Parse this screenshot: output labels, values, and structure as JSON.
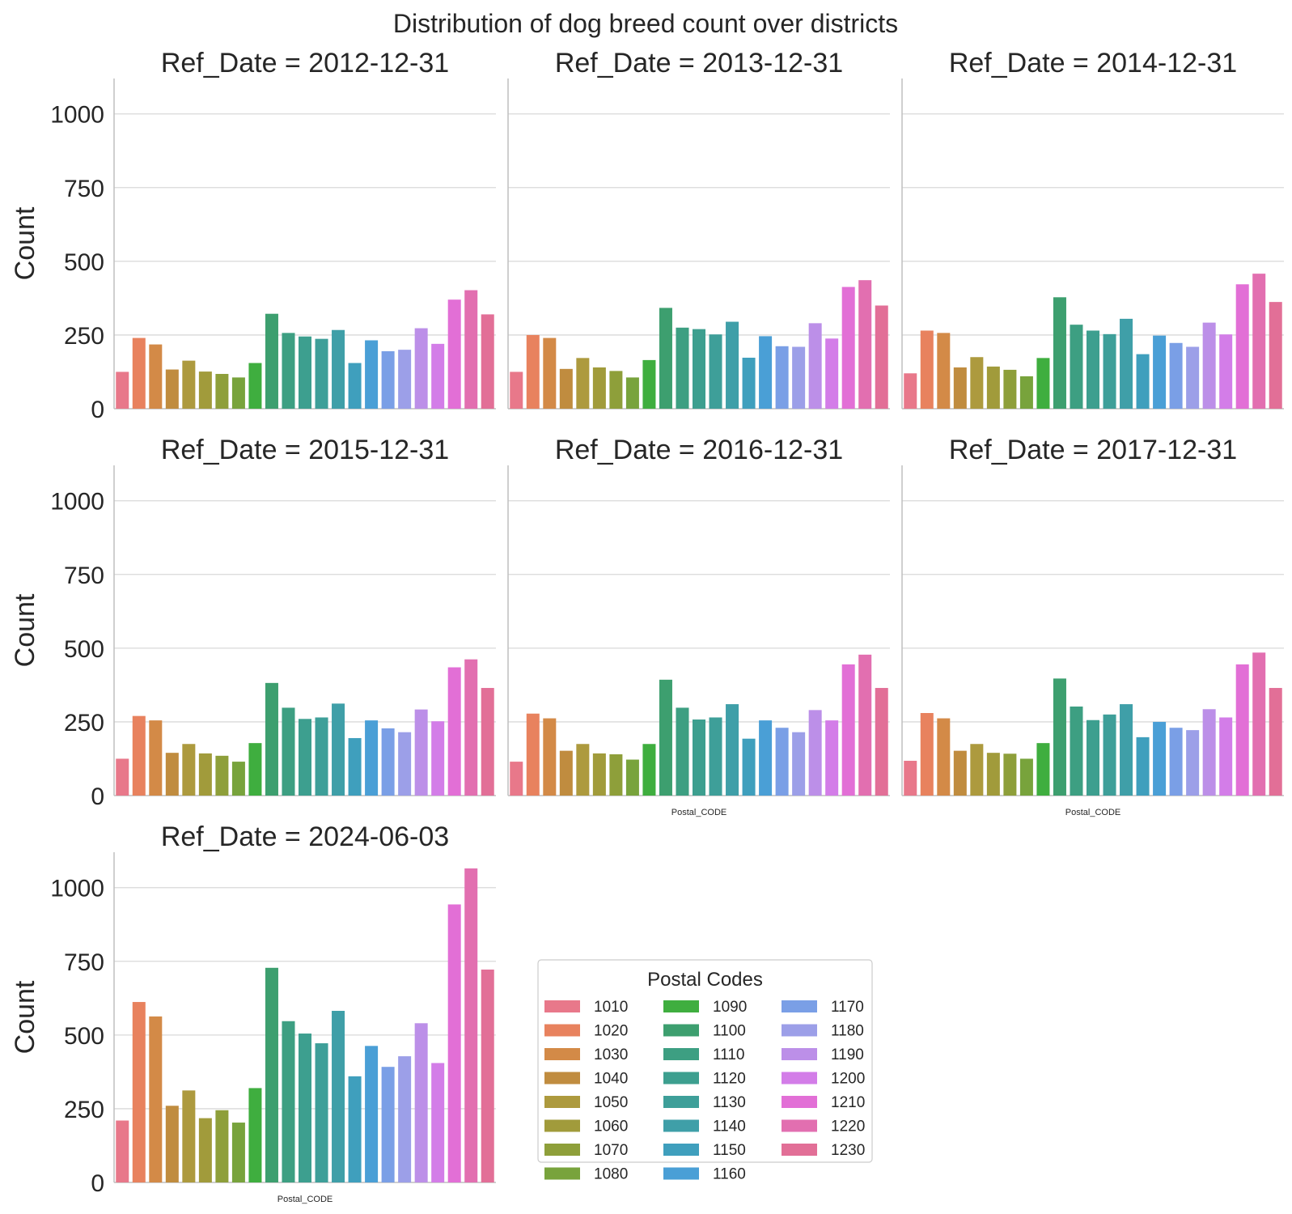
{
  "chart_data": {
    "type": "bar",
    "title": "Distribution of dog breed count over districts",
    "ylabel": "Count",
    "xlabel": "Postal_CODE",
    "ylim": [
      0,
      1120
    ],
    "yticks": [
      0,
      250,
      500,
      750,
      1000
    ],
    "grid": true,
    "legend": {
      "title": "Postal Codes",
      "placement": "bottom-center",
      "columns": 3
    },
    "categories": [
      "1010",
      "1020",
      "1030",
      "1040",
      "1050",
      "1060",
      "1070",
      "1080",
      "1090",
      "1100",
      "1110",
      "1120",
      "1130",
      "1140",
      "1150",
      "1160",
      "1170",
      "1180",
      "1190",
      "1200",
      "1210",
      "1220",
      "1230"
    ],
    "colors": [
      "#e8788a",
      "#e8825e",
      "#d38a47",
      "#c08c3f",
      "#ad9a3e",
      "#a19b3b",
      "#8e9f3a",
      "#78a33c",
      "#3fae3f",
      "#3d9f6f",
      "#3d9f82",
      "#3d9f8f",
      "#3e9f99",
      "#3f9fa8",
      "#3f9fbd",
      "#4a9fd6",
      "#7a9fe6",
      "#9c9fe8",
      "#bc8fe8",
      "#d37de8",
      "#e26fd6",
      "#e26fb0",
      "#e26f97"
    ],
    "facets": [
      {
        "title": "Ref_Date = 2012-12-31",
        "values": [
          125,
          240,
          218,
          133,
          163,
          126,
          118,
          106,
          155,
          322,
          257,
          245,
          237,
          267,
          155,
          232,
          195,
          200,
          273,
          220,
          370,
          402,
          320
        ]
      },
      {
        "title": "Ref_Date = 2013-12-31",
        "values": [
          125,
          250,
          240,
          135,
          172,
          140,
          128,
          106,
          165,
          342,
          275,
          270,
          252,
          295,
          173,
          246,
          212,
          210,
          290,
          238,
          413,
          436,
          350
        ]
      },
      {
        "title": "Ref_Date = 2014-12-31",
        "values": [
          120,
          265,
          257,
          140,
          175,
          143,
          132,
          110,
          172,
          378,
          285,
          265,
          253,
          305,
          185,
          248,
          223,
          210,
          292,
          252,
          422,
          458,
          362
        ]
      },
      {
        "title": "Ref_Date = 2015-12-31",
        "values": [
          125,
          270,
          255,
          145,
          175,
          143,
          135,
          115,
          178,
          382,
          298,
          260,
          265,
          312,
          195,
          255,
          228,
          215,
          292,
          252,
          435,
          462,
          365
        ]
      },
      {
        "title": "Ref_Date = 2016-12-31",
        "values": [
          115,
          278,
          262,
          152,
          175,
          143,
          140,
          122,
          175,
          393,
          298,
          258,
          265,
          310,
          193,
          255,
          230,
          215,
          290,
          255,
          445,
          478,
          365
        ]
      },
      {
        "title": "Ref_Date = 2017-12-31",
        "values": [
          118,
          280,
          262,
          152,
          175,
          145,
          142,
          125,
          178,
          397,
          302,
          256,
          275,
          310,
          198,
          250,
          230,
          222,
          293,
          265,
          445,
          485,
          365
        ]
      },
      {
        "title": "Ref_Date = 2024-06-03",
        "values": [
          210,
          612,
          563,
          260,
          312,
          218,
          245,
          203,
          320,
          728,
          547,
          505,
          472,
          582,
          360,
          463,
          392,
          428,
          540,
          405,
          943,
          1065,
          722
        ]
      }
    ]
  }
}
